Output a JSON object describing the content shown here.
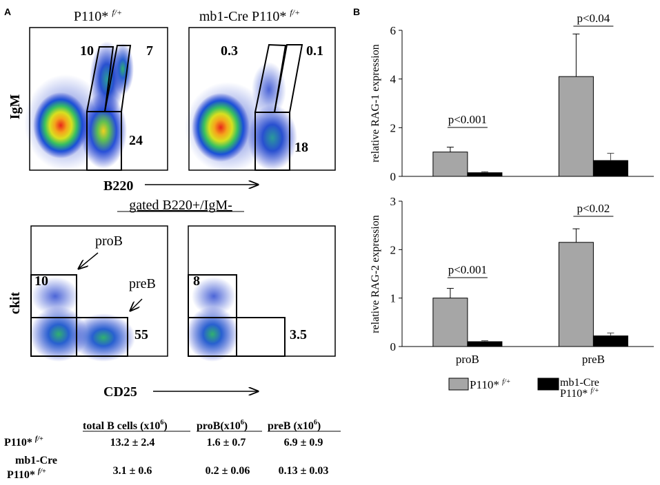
{
  "panel_labels": {
    "a": "A",
    "b": "B"
  },
  "panel_a": {
    "flow_top": {
      "col_titles": [
        "P110* ",
        "mb1-Cre P110* "
      ],
      "col_title_sup": "f/+",
      "y_label": "IgM",
      "x_label": "B220",
      "wt_gates": {
        "igm_lo": "10",
        "igm_hi": "7",
        "b220": "24"
      },
      "ko_gates": {
        "igm_lo": "0.3",
        "igm_hi": "0.1",
        "b220": "18"
      }
    },
    "flow_bottom": {
      "title": "gated B220+/IgM-",
      "y_label": "ckit",
      "x_label": "CD25",
      "wt_gates": {
        "prob": "10",
        "preb": "55"
      },
      "ko_gates": {
        "prob": "8",
        "preb": "3.5"
      },
      "annot_prob": "proB",
      "annot_preb": "preB"
    },
    "table": {
      "headers": [
        "total B cells (x10",
        "proB(x10",
        "preB (x10"
      ],
      "header_sup": "6",
      "row1": {
        "label": "P110* ",
        "label_sup": "f/+",
        "values": [
          "13.2 ± 2.4",
          "1.6 ± 0.7",
          "6.9 ± 0.9"
        ]
      },
      "row2": {
        "label_line1": "mb1-Cre",
        "label_line2": "P110* ",
        "label_sup": "f/+",
        "values": [
          "3.1 ± 0.6",
          "0.2 ± 0.06",
          "0.13 ± 0.03"
        ]
      }
    }
  },
  "chart_data": [
    {
      "type": "bar",
      "title": "",
      "ylabel": "relative  RAG-1 expression",
      "xlabel": "",
      "categories": [
        "proB",
        "preB"
      ],
      "series": [
        {
          "name": "P110* f/+",
          "values": [
            1.0,
            4.1
          ],
          "errors": [
            0.2,
            1.75
          ],
          "color": "#a6a6a6"
        },
        {
          "name": "mb1-Cre P110* f/+",
          "values": [
            0.15,
            0.65
          ],
          "errors": [
            0.04,
            0.3
          ],
          "color": "#000000"
        }
      ],
      "ylim": [
        0,
        6
      ],
      "yticks": [
        "0",
        "2",
        "4",
        "6"
      ],
      "annotations": [
        "p<0.001",
        "p<0.04"
      ]
    },
    {
      "type": "bar",
      "title": "",
      "ylabel": "relative  RAG-2 expression",
      "xlabel": "",
      "categories": [
        "proB",
        "preB"
      ],
      "series": [
        {
          "name": "P110* f/+",
          "values": [
            1.0,
            2.15
          ],
          "errors": [
            0.2,
            0.28
          ],
          "color": "#a6a6a6"
        },
        {
          "name": "mb1-Cre P110* f/+",
          "values": [
            0.1,
            0.22
          ],
          "errors": [
            0.02,
            0.06
          ],
          "color": "#000000"
        }
      ],
      "ylim": [
        0,
        3
      ],
      "yticks": [
        "0",
        "1",
        "2",
        "3"
      ],
      "annotations": [
        "p<0.001",
        "p<0.02"
      ]
    }
  ],
  "legend": {
    "wt_label": "P110* ",
    "wt_sup": "f/+",
    "ko_label_line1": "mb1-Cre",
    "ko_label_line2": "P110* ",
    "ko_sup": "f/+"
  }
}
